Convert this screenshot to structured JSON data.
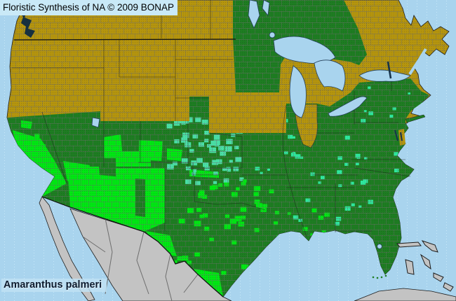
{
  "header": {
    "title": "Floristic Synthesis of NA © 2009 BONAP"
  },
  "map": {
    "species_label": "Amaranthus palmeri"
  },
  "palette": {
    "ocean": "#A9D4EE",
    "header_bg": "#C9E9F7",
    "absent": "#B5950E",
    "present_state": "#1E7D22",
    "present_county": "#00E713",
    "adventive_county": "#4ADFA6",
    "adventive_bright": "#2EE99E",
    "noreport_land": "#C3C3C3",
    "county_line": "#6B6B6B",
    "border": "#101010",
    "label_color": "#0D1B2E"
  }
}
